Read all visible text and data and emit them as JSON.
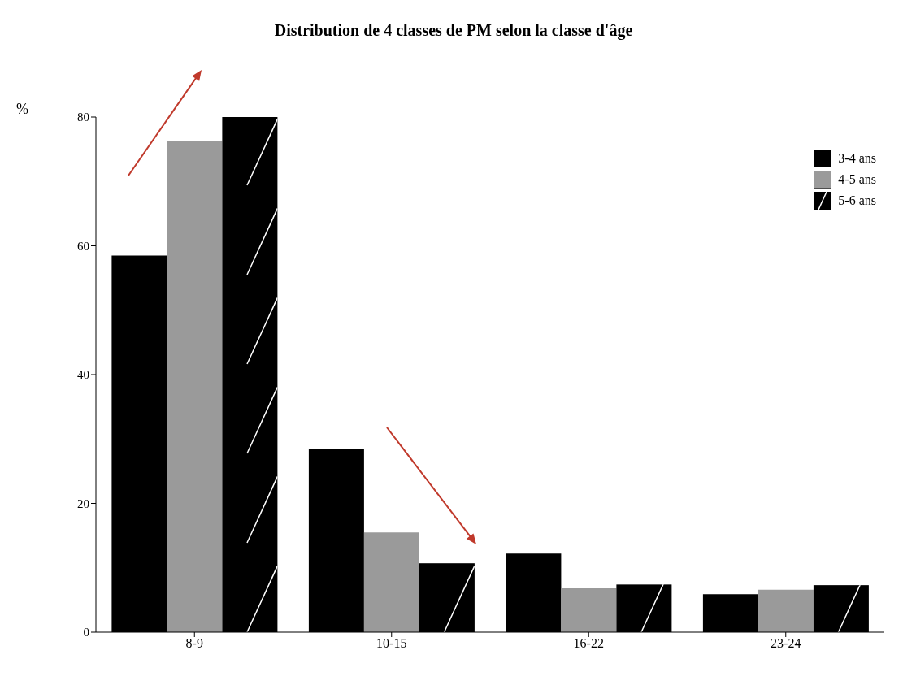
{
  "chart_data": {
    "type": "bar",
    "title": "Distribution de 4 classes de PM selon la classe d'âge",
    "ylabel": "%",
    "categories": [
      "8-9",
      "10-15",
      "16-22",
      "23-24"
    ],
    "series": [
      {
        "name": "3-4 ans",
        "color": "#000000",
        "values": [
          58.5,
          28.4,
          12.2,
          5.9
        ]
      },
      {
        "name": "4-5 ans",
        "color": "#9a9a9a",
        "values": [
          76.2,
          15.5,
          6.8,
          6.6
        ]
      },
      {
        "name": "5-6 ans",
        "color": "#000000",
        "values": [
          80,
          10.7,
          7.4,
          7.3
        ]
      }
    ],
    "ylim": [
      0,
      80
    ],
    "yticks": [
      0,
      20,
      40,
      60,
      80
    ],
    "legend": "top right"
  }
}
